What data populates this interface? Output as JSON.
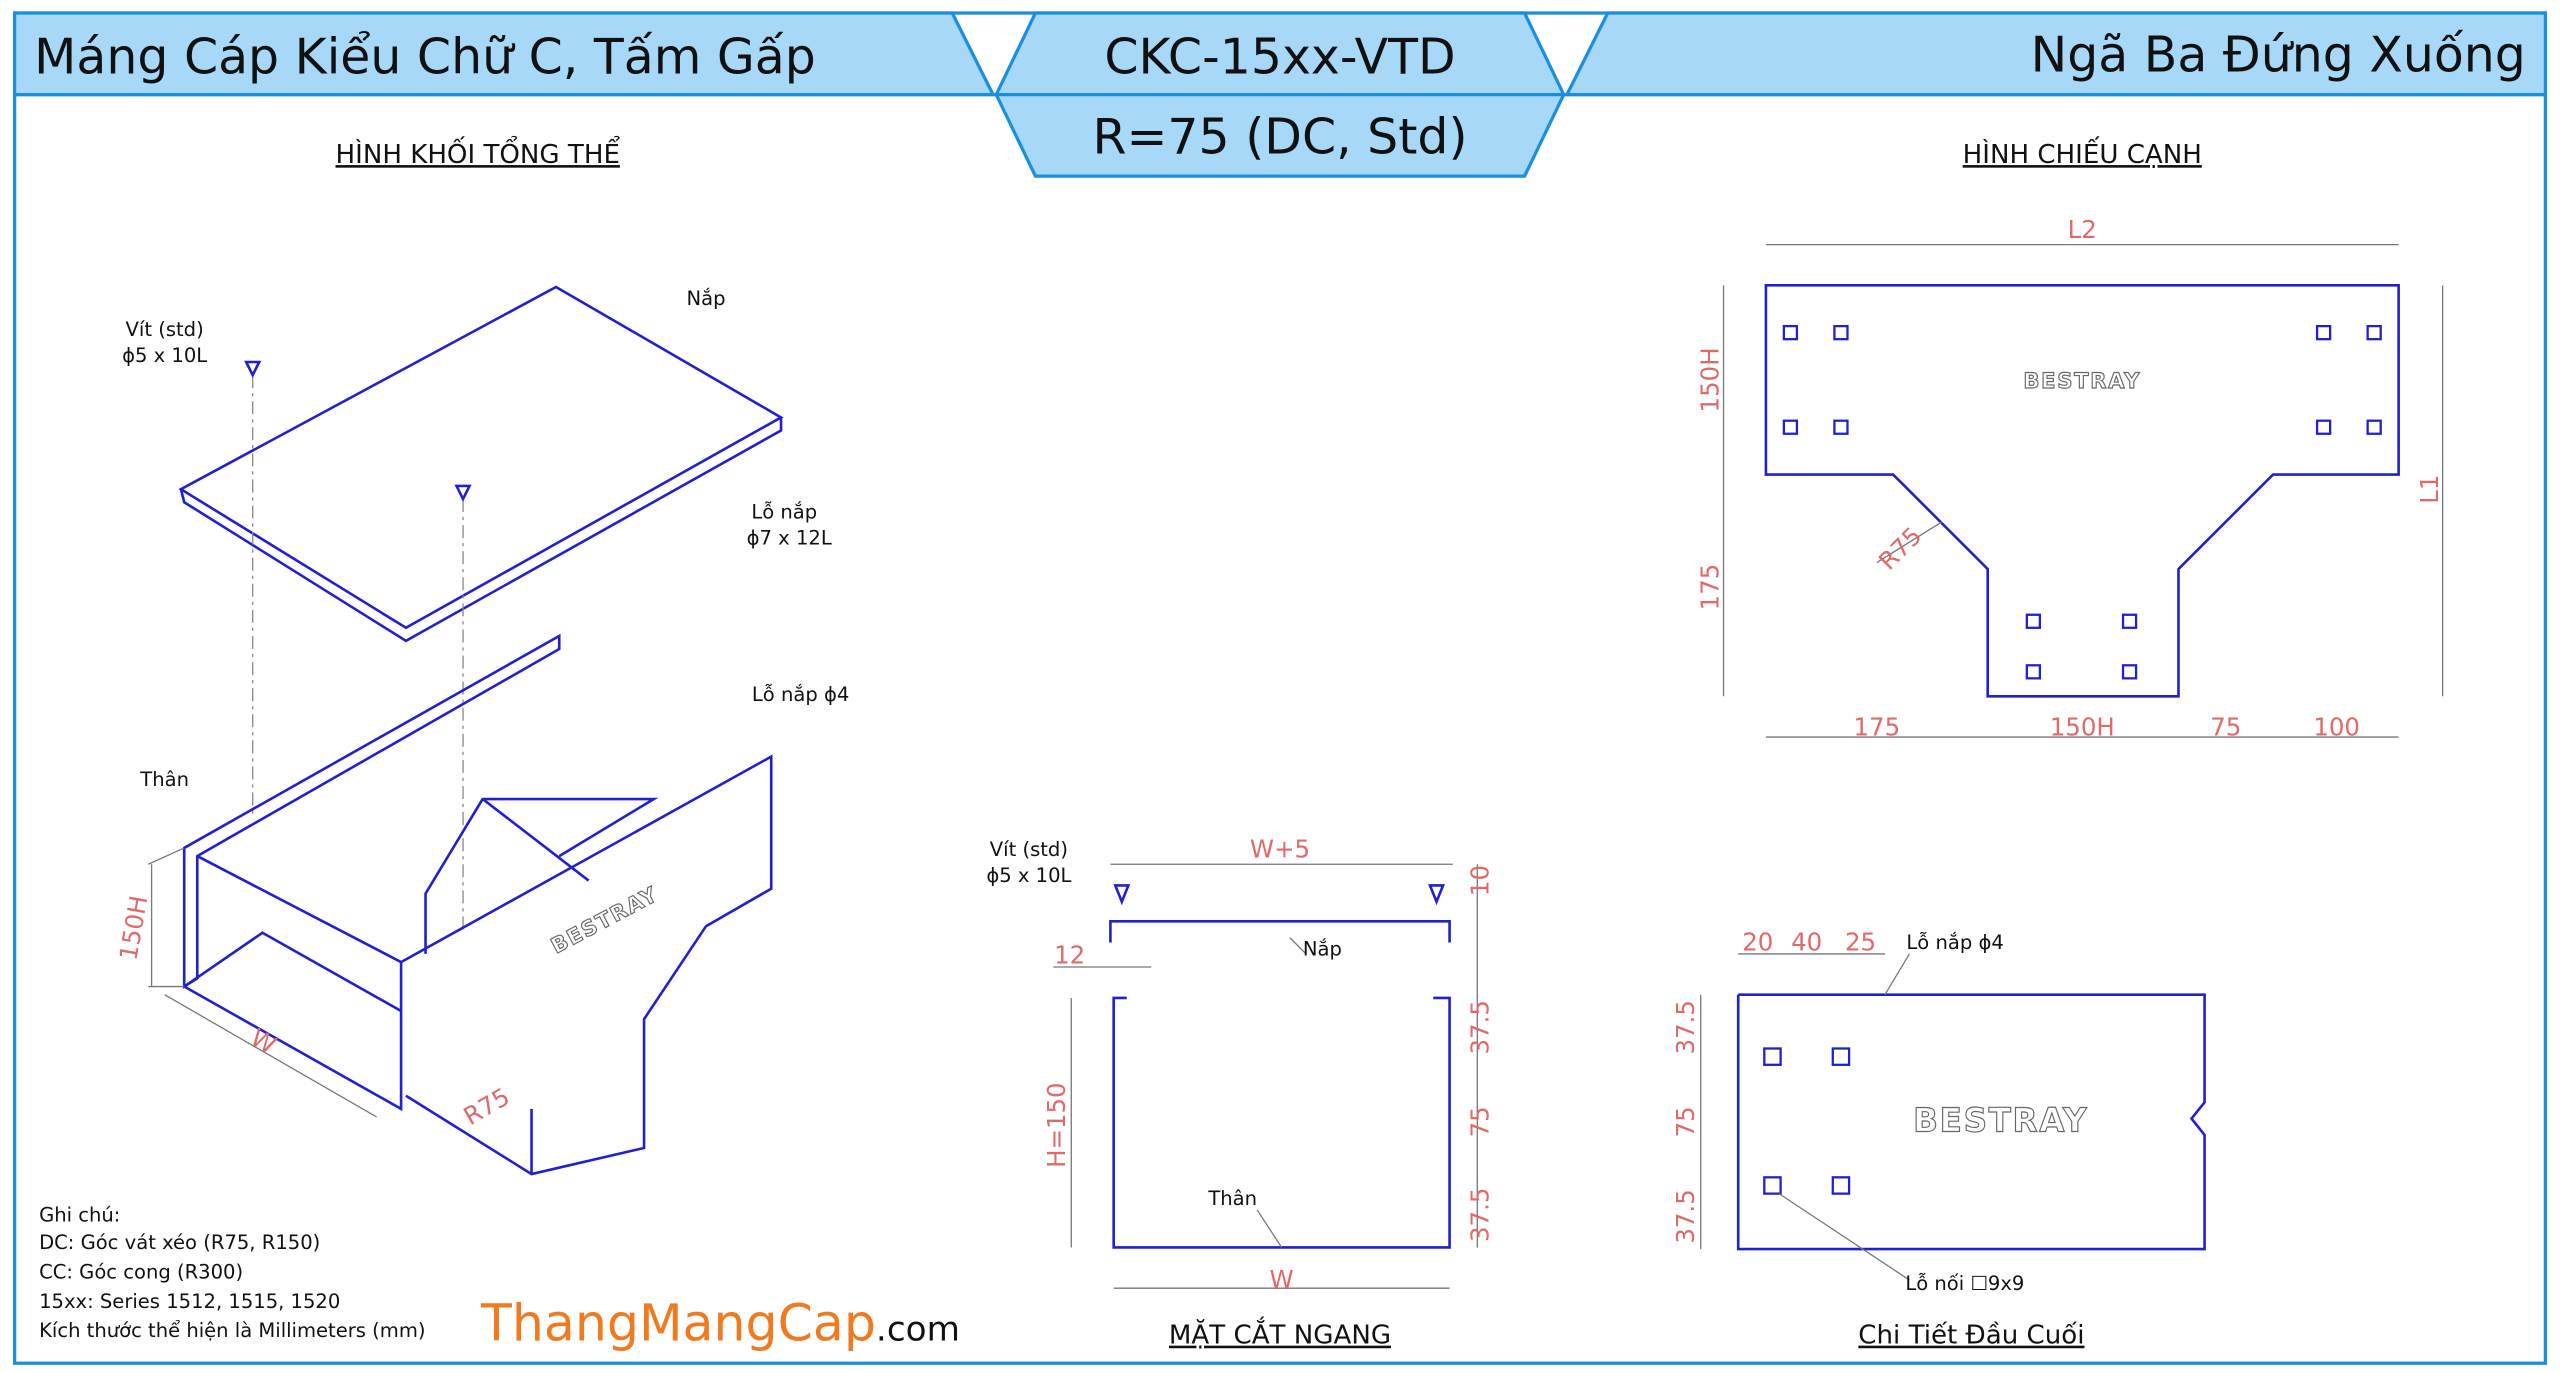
{
  "header": {
    "left": "Máng Cáp Kiểu Chữ C, Tấm Gấp",
    "code": "CKC-15xx-VTD",
    "subtitle": "R=75 (DC, Std)",
    "right": "Ngã Ba Đứng Xuống"
  },
  "iso": {
    "title": "HÌNH KHỐI TỔNG THỂ",
    "screw": "Vít (std)",
    "screw_size": "ϕ5 x 10L",
    "lid": "Nắp",
    "lid_hole": "Lỗ nắp",
    "lid_hole_size": "ϕ7 x 12L",
    "lid_hole2": "Lỗ nắp ϕ4",
    "body": "Thân",
    "height": "150H",
    "width": "W",
    "radius": "R75",
    "logo": "BESTRAY"
  },
  "side": {
    "title": "HÌNH CHIẾU CẠNH",
    "top": "L2",
    "left_upper": "150H",
    "left_lower": "175",
    "radius": "R75",
    "right": "L1",
    "bottom": [
      "175",
      "150H",
      "75",
      "100"
    ],
    "logo": "BESTRAY"
  },
  "section": {
    "title": "MẶT CẮT NGANG",
    "screw": "Vít (std)",
    "screw_size": "ϕ5 x 10L",
    "top": "W+5",
    "gap": "10",
    "lip": "12",
    "lid": "Nắp",
    "height": "H=150",
    "right": [
      "37.5",
      "75",
      "37.5"
    ],
    "body": "Thân",
    "bottom": "W"
  },
  "end": {
    "title": "Chi Tiết Đầu Cuối",
    "top": [
      "20",
      "40",
      "25"
    ],
    "lid_hole": "Lỗ nắp ϕ4",
    "left": [
      "37.5",
      "75",
      "37.5"
    ],
    "logo": "BESTRAY",
    "joint_hole": "Lỗ nối ☐9x9"
  },
  "notes": {
    "title": "Ghi chú:",
    "lines": [
      "DC: Góc vát xéo (R75, R150)",
      "CC: Góc cong (R300)",
      "15xx: Series 1512, 1515, 1520",
      "Kích thước thể hiện là Millimeters (mm)"
    ]
  },
  "brand": {
    "name": "ThangMangCap",
    "suffix": ".com"
  }
}
